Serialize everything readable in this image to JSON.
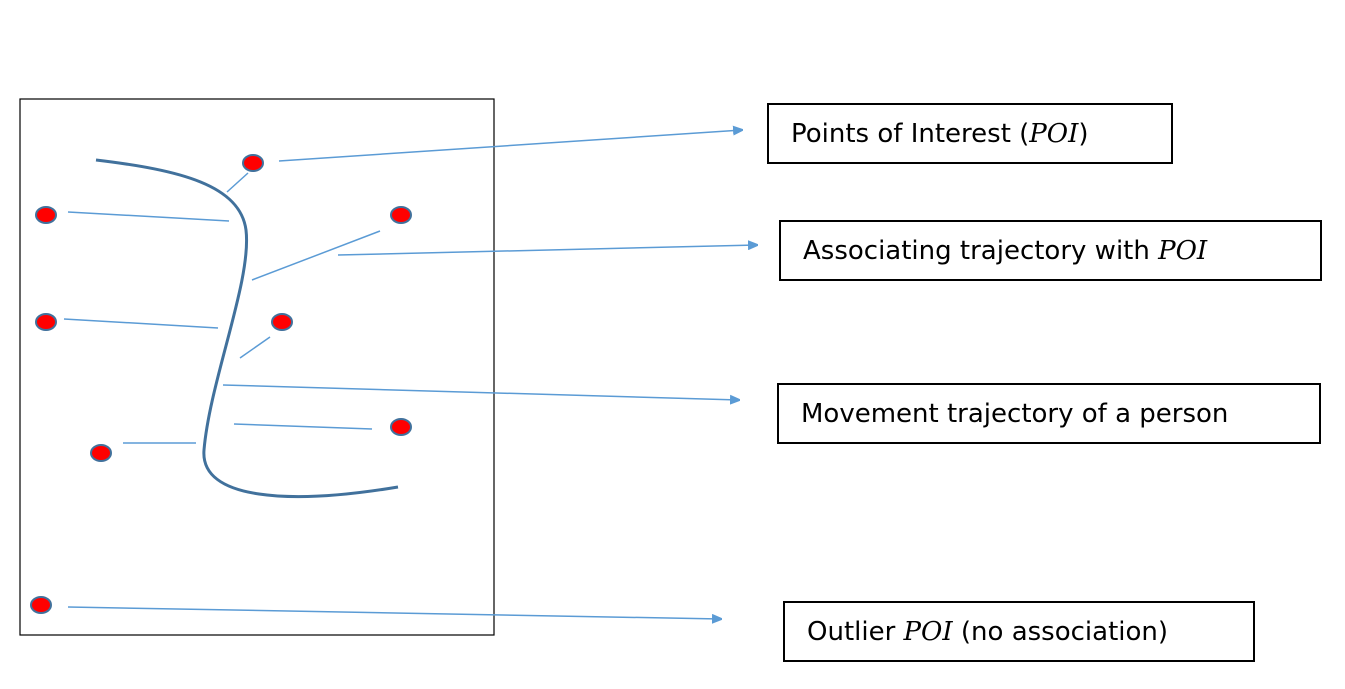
{
  "labels": {
    "poi": {
      "text": "Points of Interest (",
      "math": "POI",
      "suffix": ")"
    },
    "association": {
      "text": "Associating trajectory with ",
      "math": "POI",
      "suffix": ""
    },
    "movement": {
      "text": "Movement trajectory of a person",
      "math": "",
      "suffix": ""
    },
    "outlier": {
      "text": "Outlier ",
      "math": "POI",
      "suffix": " (no association)"
    }
  },
  "colors": {
    "trajectory": "#41719c",
    "connector": "#5b9bd5",
    "arrow": "#5b9bd5",
    "poi_fill": "#ff0000",
    "poi_stroke": "#41719c",
    "frame": "#000000"
  }
}
